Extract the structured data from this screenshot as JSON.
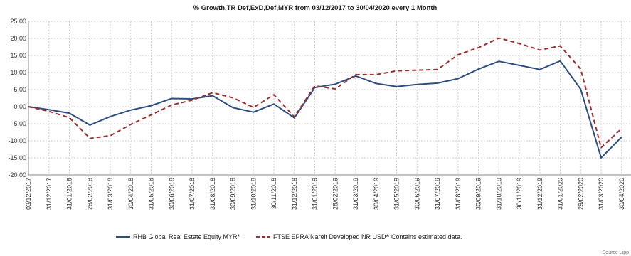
{
  "chart_data": {
    "type": "line",
    "title": "% Growth,TR Def,ExD,Def,MYR from 03/12/2017 to 30/04/2020 every 1 Month",
    "categories": [
      "03/12/2017",
      "31/12/2017",
      "31/01/2018",
      "28/02/2018",
      "31/03/2018",
      "30/04/2018",
      "31/05/2018",
      "30/06/2018",
      "31/07/2018",
      "31/08/2018",
      "30/09/2018",
      "31/10/2018",
      "30/11/2018",
      "31/12/2018",
      "31/01/2019",
      "28/02/2019",
      "31/03/2019",
      "30/04/2019",
      "31/05/2019",
      "30/06/2019",
      "31/07/2019",
      "31/08/2019",
      "30/09/2019",
      "31/10/2019",
      "30/11/2019",
      "31/12/2019",
      "31/01/2020",
      "29/02/2020",
      "31/03/2020",
      "30/04/2020"
    ],
    "ylim": [
      -20,
      25
    ],
    "yticks": [
      "25.00",
      "20.00",
      "15.00",
      "10.00",
      "5.00",
      "0.00",
      "-5.00",
      "-10.00",
      "-15.00",
      "-20.00"
    ],
    "series": [
      {
        "name": "RHB Global Real Estate Equity MYR*",
        "color": "#2e4f7f",
        "style": "solid",
        "values": [
          0.0,
          -0.9,
          -1.9,
          -5.4,
          -2.9,
          -1.0,
          0.3,
          2.4,
          2.3,
          3.2,
          -0.3,
          -1.6,
          0.8,
          -3.3,
          5.6,
          6.6,
          9.0,
          6.8,
          5.9,
          6.5,
          6.9,
          8.2,
          11.0,
          13.3,
          12.1,
          10.9,
          13.4,
          5.1,
          -15.0,
          -8.9
        ]
      },
      {
        "name": "FTSE EPRA Nareit Developed NR USD*",
        "color": "#9a3030",
        "style": "dashed",
        "values": [
          0.0,
          -1.4,
          -3.2,
          -9.3,
          -8.5,
          -5.2,
          -2.4,
          0.5,
          1.9,
          4.1,
          2.6,
          -0.2,
          3.5,
          -3.0,
          6.1,
          5.2,
          9.4,
          9.4,
          10.5,
          10.7,
          10.9,
          15.2,
          17.3,
          20.1,
          18.5,
          16.6,
          17.8,
          11.0,
          -12.0,
          -6.4
        ]
      }
    ],
    "legend_note": "*  Contains estimated data.",
    "legend_position": "bottom",
    "grid": true,
    "source": "Source Lipp"
  }
}
